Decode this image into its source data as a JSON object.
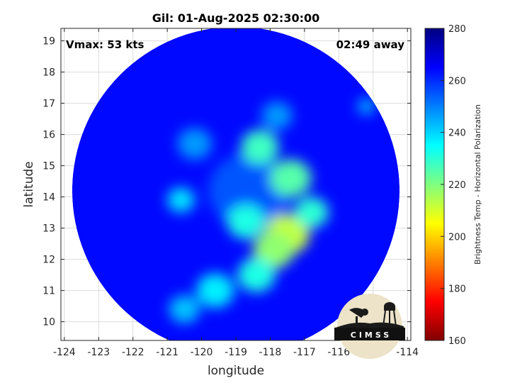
{
  "chart_data": {
    "type": "heatmap",
    "title": "Gil: 01-Aug-2025 02:30:00",
    "xlabel": "longitude",
    "ylabel": "latitude",
    "xlim": [
      -124.1,
      -113.9
    ],
    "ylim": [
      9.4,
      19.4
    ],
    "x_ticks": [
      -124,
      -123,
      -122,
      -121,
      -120,
      -119,
      -118,
      -117,
      -116,
      -115,
      -114
    ],
    "y_ticks": [
      10,
      11,
      12,
      13,
      14,
      15,
      16,
      17,
      18,
      19
    ],
    "grid": true,
    "annotations": {
      "vmax": "Vmax: 53 kts",
      "away": "02:49 away"
    },
    "colorbar": {
      "label": "Brightness Temp - Horizontal Polarization",
      "range": [
        160,
        280
      ],
      "ticks": [
        160,
        180,
        200,
        220,
        240,
        260,
        280
      ],
      "colormap": "jet"
    },
    "swath": {
      "center": [
        -119.0,
        14.2
      ],
      "radius_deg": 5.0,
      "background_value": 264
    },
    "features": [
      {
        "name": "eye",
        "lon": -118.8,
        "lat": 14.5,
        "value": 266,
        "r": 0.55
      },
      {
        "name": "warm core ring",
        "lon": -118.6,
        "lat": 14.2,
        "value": 255,
        "r": 1.2
      },
      {
        "name": "eyewall south",
        "lon": -118.7,
        "lat": 13.2,
        "value": 232,
        "r": 0.55
      },
      {
        "name": "eyewall north",
        "lon": -118.3,
        "lat": 15.6,
        "value": 228,
        "r": 0.55
      },
      {
        "name": "eyewall east",
        "lon": -117.4,
        "lat": 14.6,
        "value": 225,
        "r": 0.6
      },
      {
        "name": "rainband core",
        "lon": -117.5,
        "lat": 12.8,
        "value": 212,
        "r": 0.65
      },
      {
        "name": "rainband core 2",
        "lon": -117.9,
        "lat": 12.3,
        "value": 218,
        "r": 0.6
      },
      {
        "name": "rainband east",
        "lon": -116.8,
        "lat": 13.5,
        "value": 230,
        "r": 0.5
      },
      {
        "name": "rainband south",
        "lon": -118.4,
        "lat": 11.5,
        "value": 232,
        "r": 0.55
      },
      {
        "name": "band southwest",
        "lon": -119.6,
        "lat": 11.0,
        "value": 237,
        "r": 0.55
      },
      {
        "name": "band west",
        "lon": -120.6,
        "lat": 13.9,
        "value": 238,
        "r": 0.4
      },
      {
        "name": "band far south",
        "lon": -120.5,
        "lat": 10.4,
        "value": 242,
        "r": 0.45
      },
      {
        "name": "band northwest",
        "lon": -120.2,
        "lat": 15.7,
        "value": 247,
        "r": 0.5
      },
      {
        "name": "band north",
        "lon": -117.8,
        "lat": 16.6,
        "value": 247,
        "r": 0.45
      },
      {
        "name": "northeast fringe",
        "lon": -115.2,
        "lat": 16.9,
        "value": 243,
        "r": 0.25
      }
    ]
  },
  "logo": {
    "text": "CIMSS"
  }
}
